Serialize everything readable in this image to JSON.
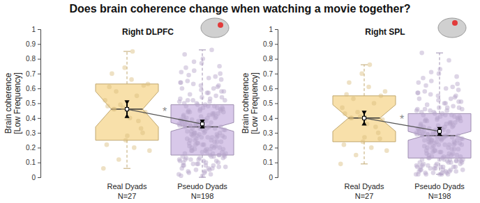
{
  "title": "Does brain coherence change when watching a movie together?",
  "chart_data": [
    {
      "type": "box",
      "title": "Right DLPFC",
      "ylabel": "Brain coherence\n[Low Frequency]",
      "categories": [
        "Real Dyads\nN=27",
        "Pseudo Dyads\nN=198"
      ],
      "ylim": [
        0,
        1
      ],
      "yticks": [
        0,
        0.1,
        0.2,
        0.3,
        0.4,
        0.5,
        0.6,
        0.7,
        0.8,
        0.9,
        1
      ],
      "annotations": [
        {
          "text": "*"
        }
      ],
      "boxes": [
        {
          "color": "#f6d68e",
          "q1": 0.25,
          "median": 0.46,
          "q3": 0.63,
          "whisker_low": 0.06,
          "whisker_high": 0.85,
          "notch_low": 0.34,
          "notch_high": 0.58,
          "mean": 0.46,
          "mean_error": 0.05,
          "points": [
            0.06,
            0.85,
            0.46,
            0.62,
            0.25,
            0.48,
            0.55,
            0.12,
            0.63,
            0.4,
            0.7,
            0.33,
            0.47,
            0.52,
            0.2,
            0.58,
            0.44,
            0.28,
            0.61,
            0.38,
            0.49,
            0.18,
            0.66,
            0.46,
            0.3,
            0.74,
            0.22
          ]
        },
        {
          "color": "#cbb6e2",
          "q1": 0.15,
          "median": 0.34,
          "q3": 0.49,
          "whisker_low": 0,
          "whisker_high": 0.86,
          "notch_low": 0.31,
          "notch_high": 0.37,
          "mean": 0.36,
          "mean_error": 0.02,
          "points": [
            0.02,
            0.34,
            0.56,
            0.15,
            0.41,
            0.08,
            0.27,
            0.72,
            0.19,
            0.49,
            0.31,
            0.11,
            0.38,
            0.64,
            0.05,
            0.29,
            0.45,
            0.22,
            0.83,
            0.14,
            0.36,
            0.52,
            0.17,
            0.03,
            0.43,
            0.33,
            0.6,
            0.25,
            0.09,
            0.47,
            0.39,
            0.13,
            0.68,
            0.28,
            0.51,
            0.06,
            0.35,
            0.2,
            0.77,
            0.42,
            0.16,
            0.3,
            0.58,
            0.1,
            0.44,
            0.24,
            0.37,
            0.01,
            0.53,
            0.18,
            0.66,
            0.32,
            0.12,
            0.48,
            0.26,
            0.07,
            0.4,
            0.21,
            0.62,
            0.34,
            0.14,
            0.86,
            0.29,
            0.46,
            0.04,
            0.37,
            0.55,
            0.23,
            0.11,
            0.42,
            0.31,
            0.7,
            0.17,
            0.5,
            0.08,
            0.35,
            0.27,
            0.19,
            0.45,
            0.61,
            0.13,
            0.38,
            0.02,
            0.28,
            0.54,
            0.22,
            0.74,
            0.33,
            0.09,
            0.36,
            0.48,
            0.25,
            0.15,
            0.59,
            0.41,
            0.06,
            0.3,
            0.44,
            0.18,
            0.65,
            0.27,
            0.12,
            0.39,
            0.51,
            0.2,
            0.34,
            0.8,
            0.16,
            0.43,
            0.05,
            0.32,
            0.57,
            0.23,
            0.1,
            0.46,
            0.37,
            0.14,
            0.63,
            0.28,
            0.03,
            0.4,
            0.21,
            0.49,
            0.35,
            0.67,
            0.12,
            0.3,
            0.54,
            0.08,
            0.42,
            0.25,
            0.15,
            0.38,
            0.04,
            0.47,
            0.29,
            0.71,
            0.19,
            0.33,
            0.58,
            0.11,
            0.36,
            0.24,
            0.5,
            0.16,
            0.27,
            0.44,
            0.07,
            0.62,
            0.35,
            0.21,
            0.78,
            0.13,
            0.31,
            0.26,
            0.41,
            0.09,
            0.53,
            0.34,
            0.18,
            0.46,
            0.01,
            0.39,
            0.6,
            0.22,
            0.14,
            0.33,
            0.69,
            0.28,
            0.45,
            0.06,
            0.37,
            0.52,
            0.17,
            0.3,
            0.48,
            0.4,
            0.23,
            0.12,
            0.57,
            0.35,
            0.75,
            0.27,
            0.1,
            0.43,
            0.19,
            0.32,
            0.08,
            0.52,
            0.29,
            0.36,
            0.64,
            0.15,
            0.39,
            0.24,
            0.47,
            0.34,
            0.2
          ]
        }
      ]
    },
    {
      "type": "box",
      "title": "Right SPL",
      "ylabel": "Brain coherence\n[Low Frequency]",
      "categories": [
        "Real Dyads\nN=27",
        "Pseudo Dyads\nN=198"
      ],
      "ylim": [
        0,
        1
      ],
      "yticks": [
        0,
        0.1,
        0.2,
        0.3,
        0.4,
        0.5,
        0.6,
        0.7,
        0.8,
        0.9,
        1
      ],
      "annotations": [
        {
          "text": "*"
        }
      ],
      "boxes": [
        {
          "color": "#f6d68e",
          "q1": 0.24,
          "median": 0.4,
          "q3": 0.55,
          "whisker_low": 0.09,
          "whisker_high": 0.76,
          "notch_low": 0.31,
          "notch_high": 0.49,
          "mean": 0.4,
          "mean_error": 0.04,
          "points": [
            0.09,
            0.76,
            0.4,
            0.55,
            0.24,
            0.43,
            0.5,
            0.15,
            0.58,
            0.36,
            0.64,
            0.3,
            0.41,
            0.47,
            0.2,
            0.53,
            0.39,
            0.27,
            0.56,
            0.34,
            0.44,
            0.18,
            0.61,
            0.4,
            0.26,
            0.7,
            0.22
          ]
        },
        {
          "color": "#cbb6e2",
          "q1": 0.13,
          "median": 0.28,
          "q3": 0.43,
          "whisker_low": 0.02,
          "whisker_high": 0.84,
          "notch_low": 0.25,
          "notch_high": 0.31,
          "mean": 0.31,
          "mean_error": 0.02,
          "points": [
            0.02,
            0.28,
            0.49,
            0.11,
            0.35,
            0.05,
            0.22,
            0.65,
            0.14,
            0.43,
            0.25,
            0.07,
            0.32,
            0.57,
            0.03,
            0.24,
            0.39,
            0.17,
            0.84,
            0.1,
            0.3,
            0.46,
            0.12,
            0.02,
            0.37,
            0.27,
            0.53,
            0.2,
            0.06,
            0.41,
            0.33,
            0.09,
            0.61,
            0.23,
            0.45,
            0.04,
            0.29,
            0.15,
            0.7,
            0.36,
            0.12,
            0.25,
            0.51,
            0.07,
            0.38,
            0.19,
            0.31,
            0.02,
            0.47,
            0.13,
            0.59,
            0.26,
            0.08,
            0.42,
            0.21,
            0.05,
            0.34,
            0.16,
            0.55,
            0.28,
            0.1,
            0.79,
            0.24,
            0.4,
            0.03,
            0.31,
            0.48,
            0.18,
            0.07,
            0.36,
            0.26,
            0.63,
            0.12,
            0.44,
            0.05,
            0.29,
            0.22,
            0.14,
            0.39,
            0.54,
            0.09,
            0.32,
            0.02,
            0.23,
            0.47,
            0.17,
            0.67,
            0.27,
            0.06,
            0.3,
            0.42,
            0.2,
            0.11,
            0.52,
            0.35,
            0.04,
            0.25,
            0.38,
            0.13,
            0.58,
            0.22,
            0.08,
            0.33,
            0.45,
            0.15,
            0.28,
            0.73,
            0.12,
            0.37,
            0.03,
            0.26,
            0.5,
            0.18,
            0.07,
            0.4,
            0.31,
            0.1,
            0.56,
            0.23,
            0.02,
            0.34,
            0.16,
            0.43,
            0.29,
            0.6,
            0.08,
            0.25,
            0.47,
            0.05,
            0.36,
            0.2,
            0.11,
            0.32,
            0.03,
            0.41,
            0.24,
            0.64,
            0.14,
            0.27,
            0.51,
            0.07,
            0.3,
            0.19,
            0.44,
            0.12,
            0.22,
            0.38,
            0.04,
            0.55,
            0.29,
            0.16,
            0.71,
            0.09,
            0.26,
            0.21,
            0.35,
            0.06,
            0.46,
            0.28,
            0.13,
            0.4,
            0.02,
            0.33,
            0.53,
            0.17,
            0.1,
            0.27,
            0.62,
            0.23,
            0.39,
            0.04,
            0.31,
            0.45,
            0.12,
            0.25,
            0.42,
            0.34,
            0.18,
            0.08,
            0.5,
            0.29,
            0.68,
            0.22,
            0.07,
            0.37,
            0.14,
            0.26,
            0.05,
            0.46,
            0.24,
            0.3,
            0.57,
            0.11,
            0.33,
            0.19,
            0.41,
            0.28,
            0.15
          ]
        }
      ]
    }
  ]
}
